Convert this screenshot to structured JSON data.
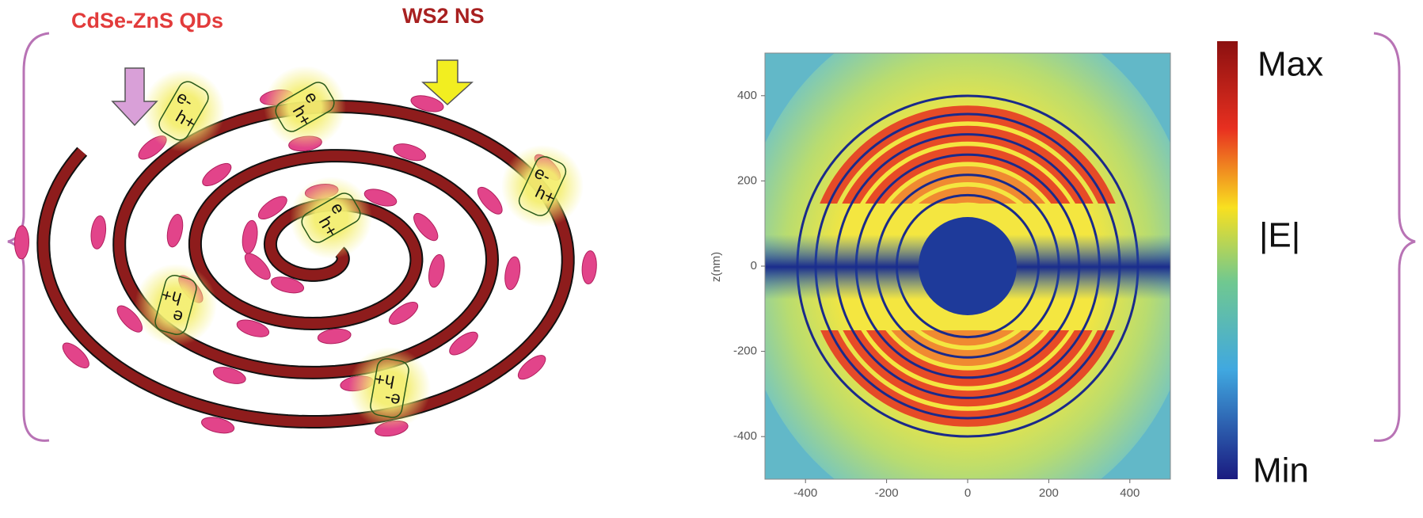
{
  "schematic": {
    "labels": {
      "qds": "CdSe-ZnS QDs",
      "ns": "WS2 NS"
    },
    "pairs": [
      {
        "e": "e-",
        "h": "h+"
      },
      {
        "e": "e",
        "h": "h+"
      },
      {
        "e": "e-",
        "h": "h+"
      },
      {
        "e": "e",
        "h": "h+"
      },
      {
        "e": "e",
        "h": "h+"
      },
      {
        "e": "e-",
        "h": "h+"
      }
    ]
  },
  "field_map": {
    "ylabel": "z(nm)",
    "xlim": [
      -500,
      500
    ],
    "ylim": [
      -500,
      500
    ],
    "xticks": [
      -400,
      -200,
      0,
      200,
      400
    ],
    "yticks": [
      -400,
      -200,
      0,
      200,
      400
    ]
  },
  "colorbar": {
    "max": "Max",
    "label": "|E|",
    "min": "Min"
  }
}
